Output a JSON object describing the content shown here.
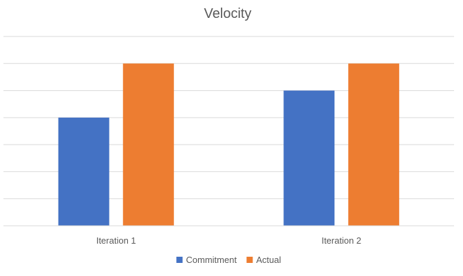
{
  "chart_data": {
    "type": "bar",
    "title": "Velocity",
    "categories": [
      "Iteration 1",
      "Iteration 2"
    ],
    "series": [
      {
        "name": "Commitment",
        "color": "#4472C4",
        "values": [
          4,
          5
        ]
      },
      {
        "name": "Actual",
        "color": "#ED7D31",
        "values": [
          6,
          6
        ]
      }
    ],
    "ylim": [
      0,
      7
    ],
    "gridlines": 7,
    "grid": true,
    "legend": "bottom"
  }
}
